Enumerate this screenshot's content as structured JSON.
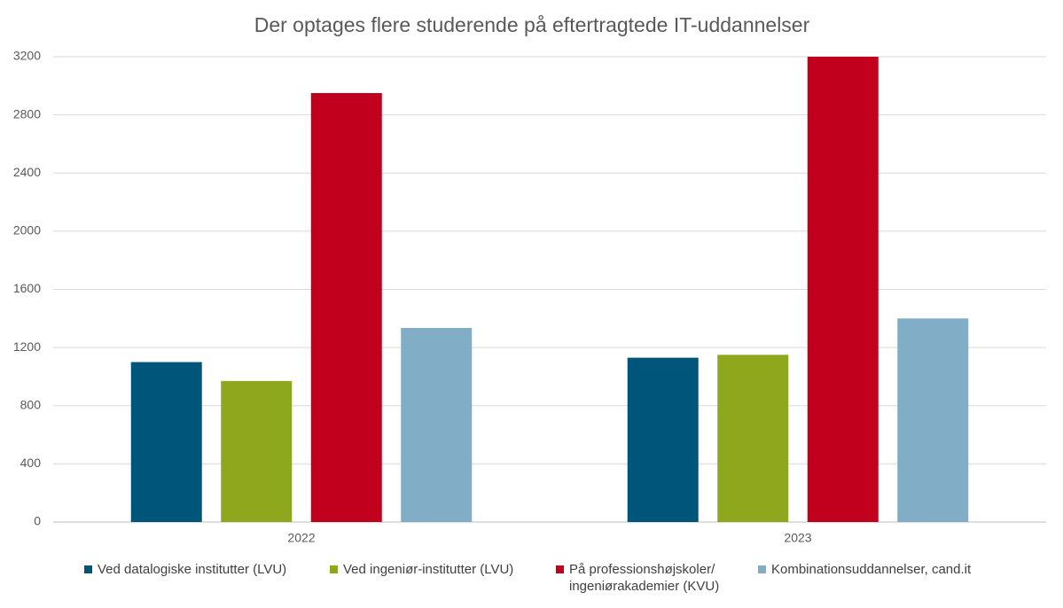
{
  "chart_data": {
    "type": "bar",
    "title": "Der optages flere studerende på eftertragtede IT-uddannelser",
    "categories": [
      "2022",
      "2023"
    ],
    "series": [
      {
        "name": "Ved datalogiske institutter (LVU)",
        "color": "#00557a",
        "values": [
          1100,
          1130
        ]
      },
      {
        "name": "Ved ingeniør-institutter (LVU)",
        "color": "#8fa71c",
        "values": [
          970,
          1150
        ]
      },
      {
        "name": "På professionshøjskoler/ ingeniørakademier (KVU)",
        "color": "#c0001d",
        "values": [
          2950,
          3200
        ]
      },
      {
        "name": "Kombinationsuddannelser, cand.it",
        "color": "#82adc6",
        "values": [
          1335,
          1400
        ]
      }
    ],
    "ylim": [
      0,
      3200
    ],
    "yticks": [
      0,
      400,
      800,
      1200,
      1600,
      2000,
      2400,
      2800,
      3200
    ],
    "grid": true
  }
}
